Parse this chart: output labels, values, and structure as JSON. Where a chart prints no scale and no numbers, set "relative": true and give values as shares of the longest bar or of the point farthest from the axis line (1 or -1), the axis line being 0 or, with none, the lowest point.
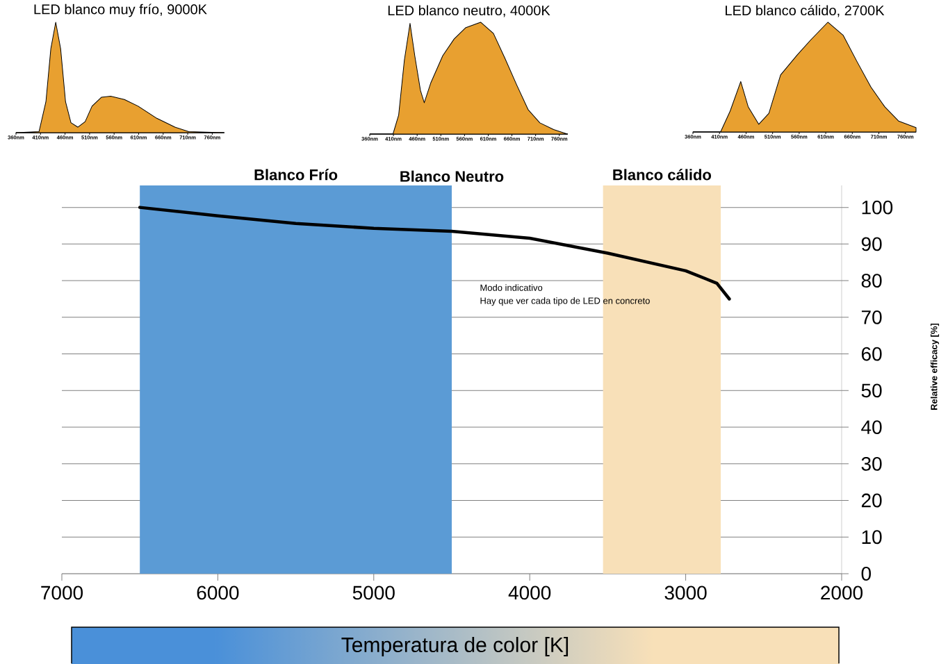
{
  "chart_data": [
    {
      "type": "area",
      "relative": true,
      "title": "LED blanco muy frío, 9000K",
      "color": "#e8a030",
      "x": [
        360,
        407,
        421,
        431,
        441,
        451,
        461,
        472,
        486,
        501,
        515,
        534,
        553,
        581,
        609,
        647,
        684,
        712,
        783
      ],
      "values": [
        0,
        0.01,
        0.28,
        0.76,
        1,
        0.76,
        0.28,
        0.09,
        0.05,
        0.1,
        0.24,
        0.32,
        0.33,
        0.3,
        0.24,
        0.13,
        0.05,
        0.01,
        0
      ],
      "xlim": [
        360,
        785
      ],
      "xticks": [
        {
          "value": 360,
          "label": "360nm"
        },
        {
          "value": 410,
          "label": "410nm"
        },
        {
          "value": 460,
          "label": "460nm"
        },
        {
          "value": 510,
          "label": "510nm"
        },
        {
          "value": 560,
          "label": "560nm"
        },
        {
          "value": 610,
          "label": "610nm"
        },
        {
          "value": 660,
          "label": "660nm"
        },
        {
          "value": 710,
          "label": "710nm"
        },
        {
          "value": 760,
          "label": "760nm"
        }
      ]
    },
    {
      "type": "area",
      "relative": true,
      "title": "LED blanco neutro, 4000K",
      "color": "#e8a030",
      "x": [
        360,
        409,
        421,
        433,
        445,
        455,
        467,
        475,
        489,
        514,
        538,
        562,
        594,
        621,
        645,
        670,
        694,
        719,
        748,
        777
      ],
      "values": [
        0,
        0,
        0.17,
        0.66,
        0.99,
        0.7,
        0.39,
        0.28,
        0.46,
        0.7,
        0.85,
        0.95,
        1,
        0.9,
        0.68,
        0.44,
        0.22,
        0.1,
        0.04,
        0
      ],
      "xlim": [
        360,
        778
      ],
      "xticks": [
        {
          "value": 360,
          "label": "360nm"
        },
        {
          "value": 410,
          "label": "410nm"
        },
        {
          "value": 460,
          "label": "460nm"
        },
        {
          "value": 510,
          "label": "510nm"
        },
        {
          "value": 560,
          "label": "560nm"
        },
        {
          "value": 610,
          "label": "610nm"
        },
        {
          "value": 660,
          "label": "660nm"
        },
        {
          "value": 710,
          "label": "710nm"
        },
        {
          "value": 760,
          "label": "760nm"
        }
      ]
    },
    {
      "type": "area",
      "relative": true,
      "title": "LED blanco cálido, 2700K",
      "color": "#e8a030",
      "x": [
        360,
        412,
        430,
        450,
        464,
        484,
        503,
        525,
        556,
        582,
        614,
        643,
        669,
        695,
        721,
        747,
        780
      ],
      "values": [
        0,
        0,
        0.19,
        0.46,
        0.23,
        0.07,
        0.17,
        0.52,
        0.7,
        0.84,
        1,
        0.88,
        0.64,
        0.41,
        0.23,
        0.1,
        0.04
      ],
      "xlim": [
        360,
        780
      ],
      "xticks": [
        {
          "value": 360,
          "label": "360nm"
        },
        {
          "value": 410,
          "label": "410nm"
        },
        {
          "value": 460,
          "label": "460nm"
        },
        {
          "value": 510,
          "label": "510nm"
        },
        {
          "value": 560,
          "label": "560nm"
        },
        {
          "value": 610,
          "label": "610nm"
        },
        {
          "value": 660,
          "label": "660nm"
        },
        {
          "value": 710,
          "label": "710nm"
        },
        {
          "value": 760,
          "label": "760nm"
        }
      ]
    },
    {
      "type": "line",
      "xlabel": "Temperatura de color  [K]",
      "ylabel": "Relative efficacy [%]",
      "color": "#000000",
      "x": [
        6500,
        6000,
        5500,
        5000,
        4500,
        4000,
        3500,
        3000,
        2800,
        2720
      ],
      "values": [
        100,
        97.7,
        95.6,
        94.3,
        93.5,
        91.6,
        87.5,
        82.7,
        79.3,
        75
      ],
      "xlim": [
        7000,
        2000
      ],
      "ylim": [
        0,
        106
      ],
      "xticks": [
        7000,
        6000,
        5000,
        4000,
        3000,
        2000
      ],
      "yticks": [
        0,
        10,
        20,
        30,
        40,
        50,
        60,
        70,
        80,
        90,
        100
      ],
      "grid": "y",
      "bands": [
        {
          "axis": "x",
          "from": 6500,
          "to": 4500,
          "label": "Blanco Frío",
          "color": "#5b9bd5"
        },
        {
          "axis": "x",
          "from": 3530,
          "to": 2775,
          "label": "Blanco cálido",
          "color": "#f8e0b8"
        }
      ],
      "annotations": [
        "Blanco Neutro",
        "Modo indicativo",
        "Hay que ver cada tipo de LED en concreto"
      ]
    }
  ]
}
